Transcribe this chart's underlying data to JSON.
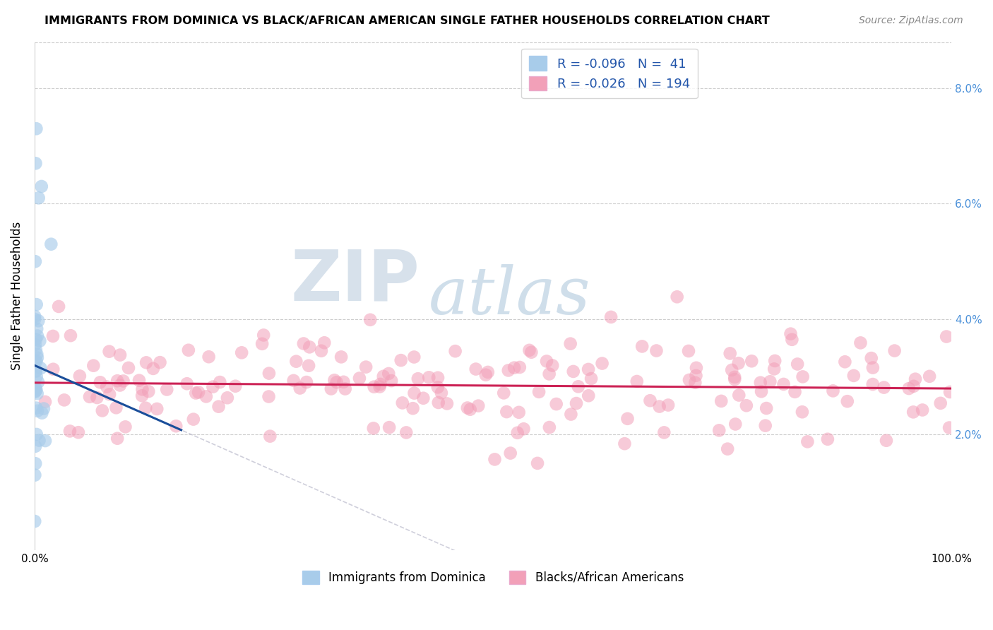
{
  "title": "IMMIGRANTS FROM DOMINICA VS BLACK/AFRICAN AMERICAN SINGLE FATHER HOUSEHOLDS CORRELATION CHART",
  "source_text": "Source: ZipAtlas.com",
  "ylabel": "Single Father Households",
  "legend_label1": "Immigrants from Dominica",
  "legend_label2": "Blacks/African Americans",
  "r1": -0.096,
  "n1": 41,
  "r2": -0.026,
  "n2": 194,
  "color_blue": "#A8CCEA",
  "color_pink": "#F2A0B8",
  "color_line_blue": "#1A4E9A",
  "color_line_pink": "#CC2255",
  "color_line_gray": "#BBBBCC",
  "xlim": [
    0.0,
    1.0
  ],
  "ylim": [
    0.0,
    0.088
  ],
  "yticks": [
    0.02,
    0.04,
    0.06,
    0.08
  ],
  "ytick_labels": [
    "2.0%",
    "4.0%",
    "6.0%",
    "8.0%"
  ],
  "watermark_zip": "ZIP",
  "watermark_atlas": "atlas",
  "watermark_color_zip": "#C8D8E8",
  "watermark_color_atlas": "#B8CCE0"
}
